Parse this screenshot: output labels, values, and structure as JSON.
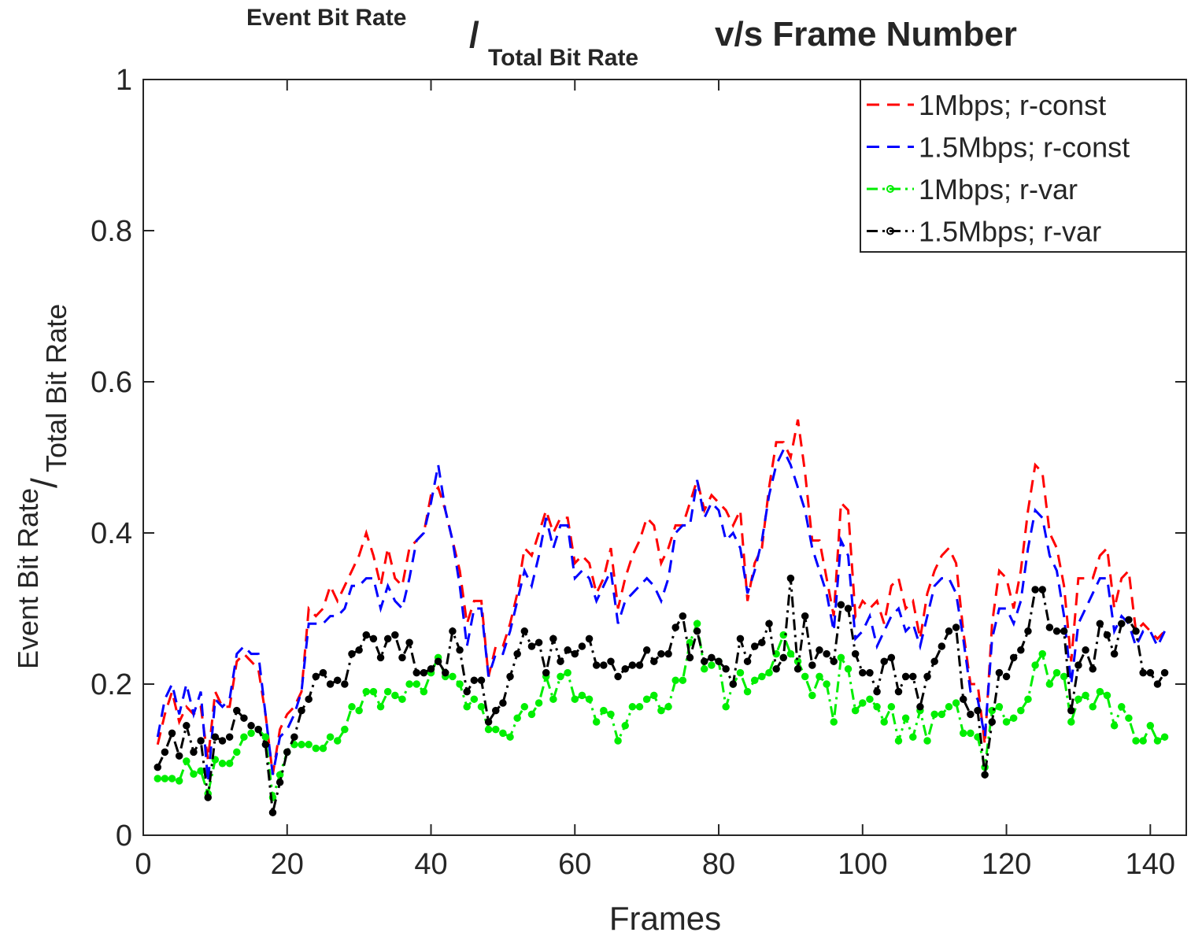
{
  "chart_data": {
    "type": "line",
    "title": {
      "numerator": "Event Bit Rate",
      "separator": "/",
      "denominator": "Total Bit Rate",
      "rest": "v/s Frame Number"
    },
    "x_label": "Frames",
    "y_label": {
      "numerator": "Event Bit Rate",
      "separator": "/",
      "denominator": "Total Bit Rate"
    },
    "x": [
      2,
      3,
      4,
      5,
      6,
      7,
      8,
      9,
      10,
      11,
      12,
      13,
      14,
      15,
      16,
      17,
      18,
      19,
      20,
      21,
      22,
      23,
      24,
      25,
      26,
      27,
      28,
      29,
      30,
      31,
      32,
      33,
      34,
      35,
      36,
      37,
      38,
      39,
      40,
      41,
      42,
      43,
      44,
      45,
      46,
      47,
      48,
      49,
      50,
      51,
      52,
      53,
      54,
      55,
      56,
      57,
      58,
      59,
      60,
      61,
      62,
      63,
      64,
      65,
      66,
      67,
      68,
      69,
      70,
      71,
      72,
      73,
      74,
      75,
      76,
      77,
      78,
      79,
      80,
      81,
      82,
      83,
      84,
      85,
      86,
      87,
      88,
      89,
      90,
      91,
      92,
      93,
      94,
      95,
      96,
      97,
      98,
      99,
      100,
      101,
      102,
      103,
      104,
      105,
      106,
      107,
      108,
      109,
      110,
      111,
      112,
      113,
      114,
      115,
      116,
      117,
      118,
      119,
      120,
      121,
      122,
      123,
      124,
      125,
      126,
      127,
      128,
      129,
      130,
      131,
      132,
      133,
      134,
      135,
      136,
      137,
      138,
      139,
      140,
      141,
      142
    ],
    "series": [
      {
        "name": "1Mbps; r-const",
        "color": "#ff0000",
        "linestyle": "dashed",
        "marker": null,
        "values": [
          0.12,
          0.16,
          0.19,
          0.15,
          0.17,
          0.16,
          0.17,
          0.1,
          0.19,
          0.17,
          0.17,
          0.23,
          0.24,
          0.23,
          0.22,
          0.16,
          0.08,
          0.14,
          0.16,
          0.17,
          0.19,
          0.3,
          0.29,
          0.3,
          0.33,
          0.31,
          0.33,
          0.35,
          0.37,
          0.4,
          0.37,
          0.33,
          0.38,
          0.34,
          0.33,
          0.38,
          0.39,
          0.4,
          0.45,
          0.46,
          0.43,
          0.39,
          0.35,
          0.28,
          0.31,
          0.31,
          0.21,
          0.25,
          0.25,
          0.28,
          0.32,
          0.38,
          0.37,
          0.4,
          0.43,
          0.4,
          0.42,
          0.42,
          0.36,
          0.37,
          0.36,
          0.32,
          0.34,
          0.38,
          0.3,
          0.34,
          0.37,
          0.39,
          0.42,
          0.41,
          0.36,
          0.38,
          0.41,
          0.41,
          0.44,
          0.47,
          0.43,
          0.45,
          0.44,
          0.43,
          0.41,
          0.43,
          0.31,
          0.36,
          0.38,
          0.46,
          0.52,
          0.52,
          0.5,
          0.55,
          0.48,
          0.39,
          0.39,
          0.34,
          0.29,
          0.44,
          0.43,
          0.29,
          0.31,
          0.3,
          0.31,
          0.28,
          0.33,
          0.34,
          0.3,
          0.31,
          0.26,
          0.32,
          0.35,
          0.37,
          0.38,
          0.36,
          0.27,
          0.2,
          0.2,
          0.12,
          0.28,
          0.35,
          0.34,
          0.3,
          0.35,
          0.43,
          0.49,
          0.48,
          0.4,
          0.38,
          0.33,
          0.23,
          0.34,
          0.34,
          0.34,
          0.37,
          0.38,
          0.3,
          0.34,
          0.35,
          0.27,
          0.28,
          0.27,
          0.26,
          0.27
        ]
      },
      {
        "name": "1.5Mbps; r-const",
        "color": "#0000ff",
        "linestyle": "dashed",
        "marker": null,
        "values": [
          0.13,
          0.18,
          0.2,
          0.16,
          0.2,
          0.16,
          0.19,
          0.07,
          0.18,
          0.17,
          0.18,
          0.24,
          0.25,
          0.24,
          0.24,
          0.16,
          0.08,
          0.13,
          0.14,
          0.16,
          0.19,
          0.28,
          0.28,
          0.28,
          0.29,
          0.29,
          0.3,
          0.33,
          0.33,
          0.34,
          0.34,
          0.3,
          0.33,
          0.31,
          0.3,
          0.34,
          0.39,
          0.4,
          0.44,
          0.49,
          0.43,
          0.39,
          0.33,
          0.25,
          0.3,
          0.3,
          0.21,
          0.24,
          0.24,
          0.27,
          0.31,
          0.35,
          0.33,
          0.37,
          0.42,
          0.38,
          0.41,
          0.41,
          0.34,
          0.35,
          0.34,
          0.31,
          0.33,
          0.35,
          0.28,
          0.31,
          0.32,
          0.33,
          0.34,
          0.33,
          0.31,
          0.34,
          0.4,
          0.41,
          0.41,
          0.47,
          0.42,
          0.44,
          0.43,
          0.39,
          0.4,
          0.38,
          0.32,
          0.35,
          0.39,
          0.45,
          0.49,
          0.51,
          0.49,
          0.46,
          0.43,
          0.38,
          0.35,
          0.32,
          0.27,
          0.39,
          0.37,
          0.26,
          0.27,
          0.29,
          0.25,
          0.27,
          0.29,
          0.3,
          0.27,
          0.28,
          0.25,
          0.29,
          0.33,
          0.34,
          0.34,
          0.32,
          0.26,
          0.19,
          0.18,
          0.13,
          0.26,
          0.3,
          0.3,
          0.28,
          0.31,
          0.38,
          0.43,
          0.42,
          0.37,
          0.35,
          0.29,
          0.2,
          0.28,
          0.3,
          0.32,
          0.34,
          0.34,
          0.27,
          0.29,
          0.28,
          0.25,
          0.27,
          0.27,
          0.25,
          0.27
        ]
      },
      {
        "name": "1Mbps; r-var",
        "color": "#00ee00",
        "linestyle": "dashdot",
        "marker": "o",
        "values": [
          0.075,
          0.075,
          0.075,
          0.072,
          0.098,
          0.081,
          0.085,
          0.055,
          0.1,
          0.095,
          0.095,
          0.11,
          0.13,
          0.135,
          0.14,
          0.13,
          0.05,
          0.08,
          0.11,
          0.12,
          0.12,
          0.12,
          0.115,
          0.115,
          0.13,
          0.125,
          0.14,
          0.17,
          0.165,
          0.19,
          0.19,
          0.17,
          0.19,
          0.185,
          0.18,
          0.2,
          0.2,
          0.19,
          0.215,
          0.235,
          0.21,
          0.21,
          0.2,
          0.17,
          0.18,
          0.17,
          0.14,
          0.14,
          0.135,
          0.13,
          0.155,
          0.17,
          0.16,
          0.175,
          0.21,
          0.18,
          0.21,
          0.215,
          0.18,
          0.185,
          0.18,
          0.15,
          0.165,
          0.16,
          0.125,
          0.145,
          0.17,
          0.17,
          0.18,
          0.185,
          0.165,
          0.17,
          0.205,
          0.205,
          0.255,
          0.28,
          0.22,
          0.225,
          0.23,
          0.17,
          0.2,
          0.215,
          0.19,
          0.205,
          0.21,
          0.215,
          0.24,
          0.265,
          0.24,
          0.23,
          0.21,
          0.185,
          0.21,
          0.2,
          0.15,
          0.235,
          0.22,
          0.165,
          0.175,
          0.18,
          0.17,
          0.15,
          0.17,
          0.125,
          0.155,
          0.13,
          0.165,
          0.125,
          0.16,
          0.16,
          0.17,
          0.175,
          0.135,
          0.135,
          0.13,
          0.09,
          0.165,
          0.17,
          0.15,
          0.155,
          0.165,
          0.18,
          0.225,
          0.24,
          0.2,
          0.215,
          0.21,
          0.15,
          0.18,
          0.185,
          0.17,
          0.19,
          0.185,
          0.145,
          0.17,
          0.155,
          0.125,
          0.125,
          0.145,
          0.125,
          0.13
        ]
      },
      {
        "name": "1.5Mbps; r-var",
        "color": "#000000",
        "linestyle": "dashdot",
        "marker": "o",
        "values": [
          0.09,
          0.11,
          0.135,
          0.105,
          0.145,
          0.11,
          0.125,
          0.05,
          0.13,
          0.125,
          0.13,
          0.165,
          0.155,
          0.145,
          0.14,
          0.12,
          0.03,
          0.07,
          0.11,
          0.13,
          0.165,
          0.18,
          0.21,
          0.215,
          0.2,
          0.205,
          0.2,
          0.24,
          0.245,
          0.265,
          0.26,
          0.235,
          0.26,
          0.265,
          0.235,
          0.255,
          0.215,
          0.215,
          0.22,
          0.23,
          0.215,
          0.27,
          0.245,
          0.19,
          0.205,
          0.205,
          0.15,
          0.165,
          0.175,
          0.21,
          0.24,
          0.27,
          0.25,
          0.255,
          0.215,
          0.26,
          0.23,
          0.245,
          0.24,
          0.25,
          0.26,
          0.225,
          0.225,
          0.23,
          0.21,
          0.22,
          0.225,
          0.225,
          0.245,
          0.23,
          0.24,
          0.24,
          0.275,
          0.29,
          0.235,
          0.27,
          0.23,
          0.235,
          0.23,
          0.22,
          0.2,
          0.26,
          0.23,
          0.25,
          0.255,
          0.28,
          0.22,
          0.235,
          0.34,
          0.22,
          0.29,
          0.225,
          0.245,
          0.24,
          0.23,
          0.305,
          0.3,
          0.24,
          0.215,
          0.215,
          0.19,
          0.23,
          0.235,
          0.19,
          0.21,
          0.21,
          0.17,
          0.21,
          0.23,
          0.25,
          0.27,
          0.275,
          0.18,
          0.16,
          0.165,
          0.08,
          0.15,
          0.215,
          0.21,
          0.235,
          0.245,
          0.27,
          0.325,
          0.325,
          0.275,
          0.27,
          0.27,
          0.165,
          0.225,
          0.245,
          0.22,
          0.28,
          0.265,
          0.24,
          0.28,
          0.285,
          0.27,
          0.215,
          0.215,
          0.2,
          0.215
        ]
      }
    ],
    "xlim": [
      0,
      145
    ],
    "xticks": [
      0,
      20,
      40,
      60,
      80,
      100,
      120,
      140
    ],
    "ylim": [
      0,
      1
    ],
    "yticks": [
      0,
      0.2,
      0.4,
      0.6,
      0.8,
      1
    ],
    "grid": false,
    "legend": "upper right"
  }
}
